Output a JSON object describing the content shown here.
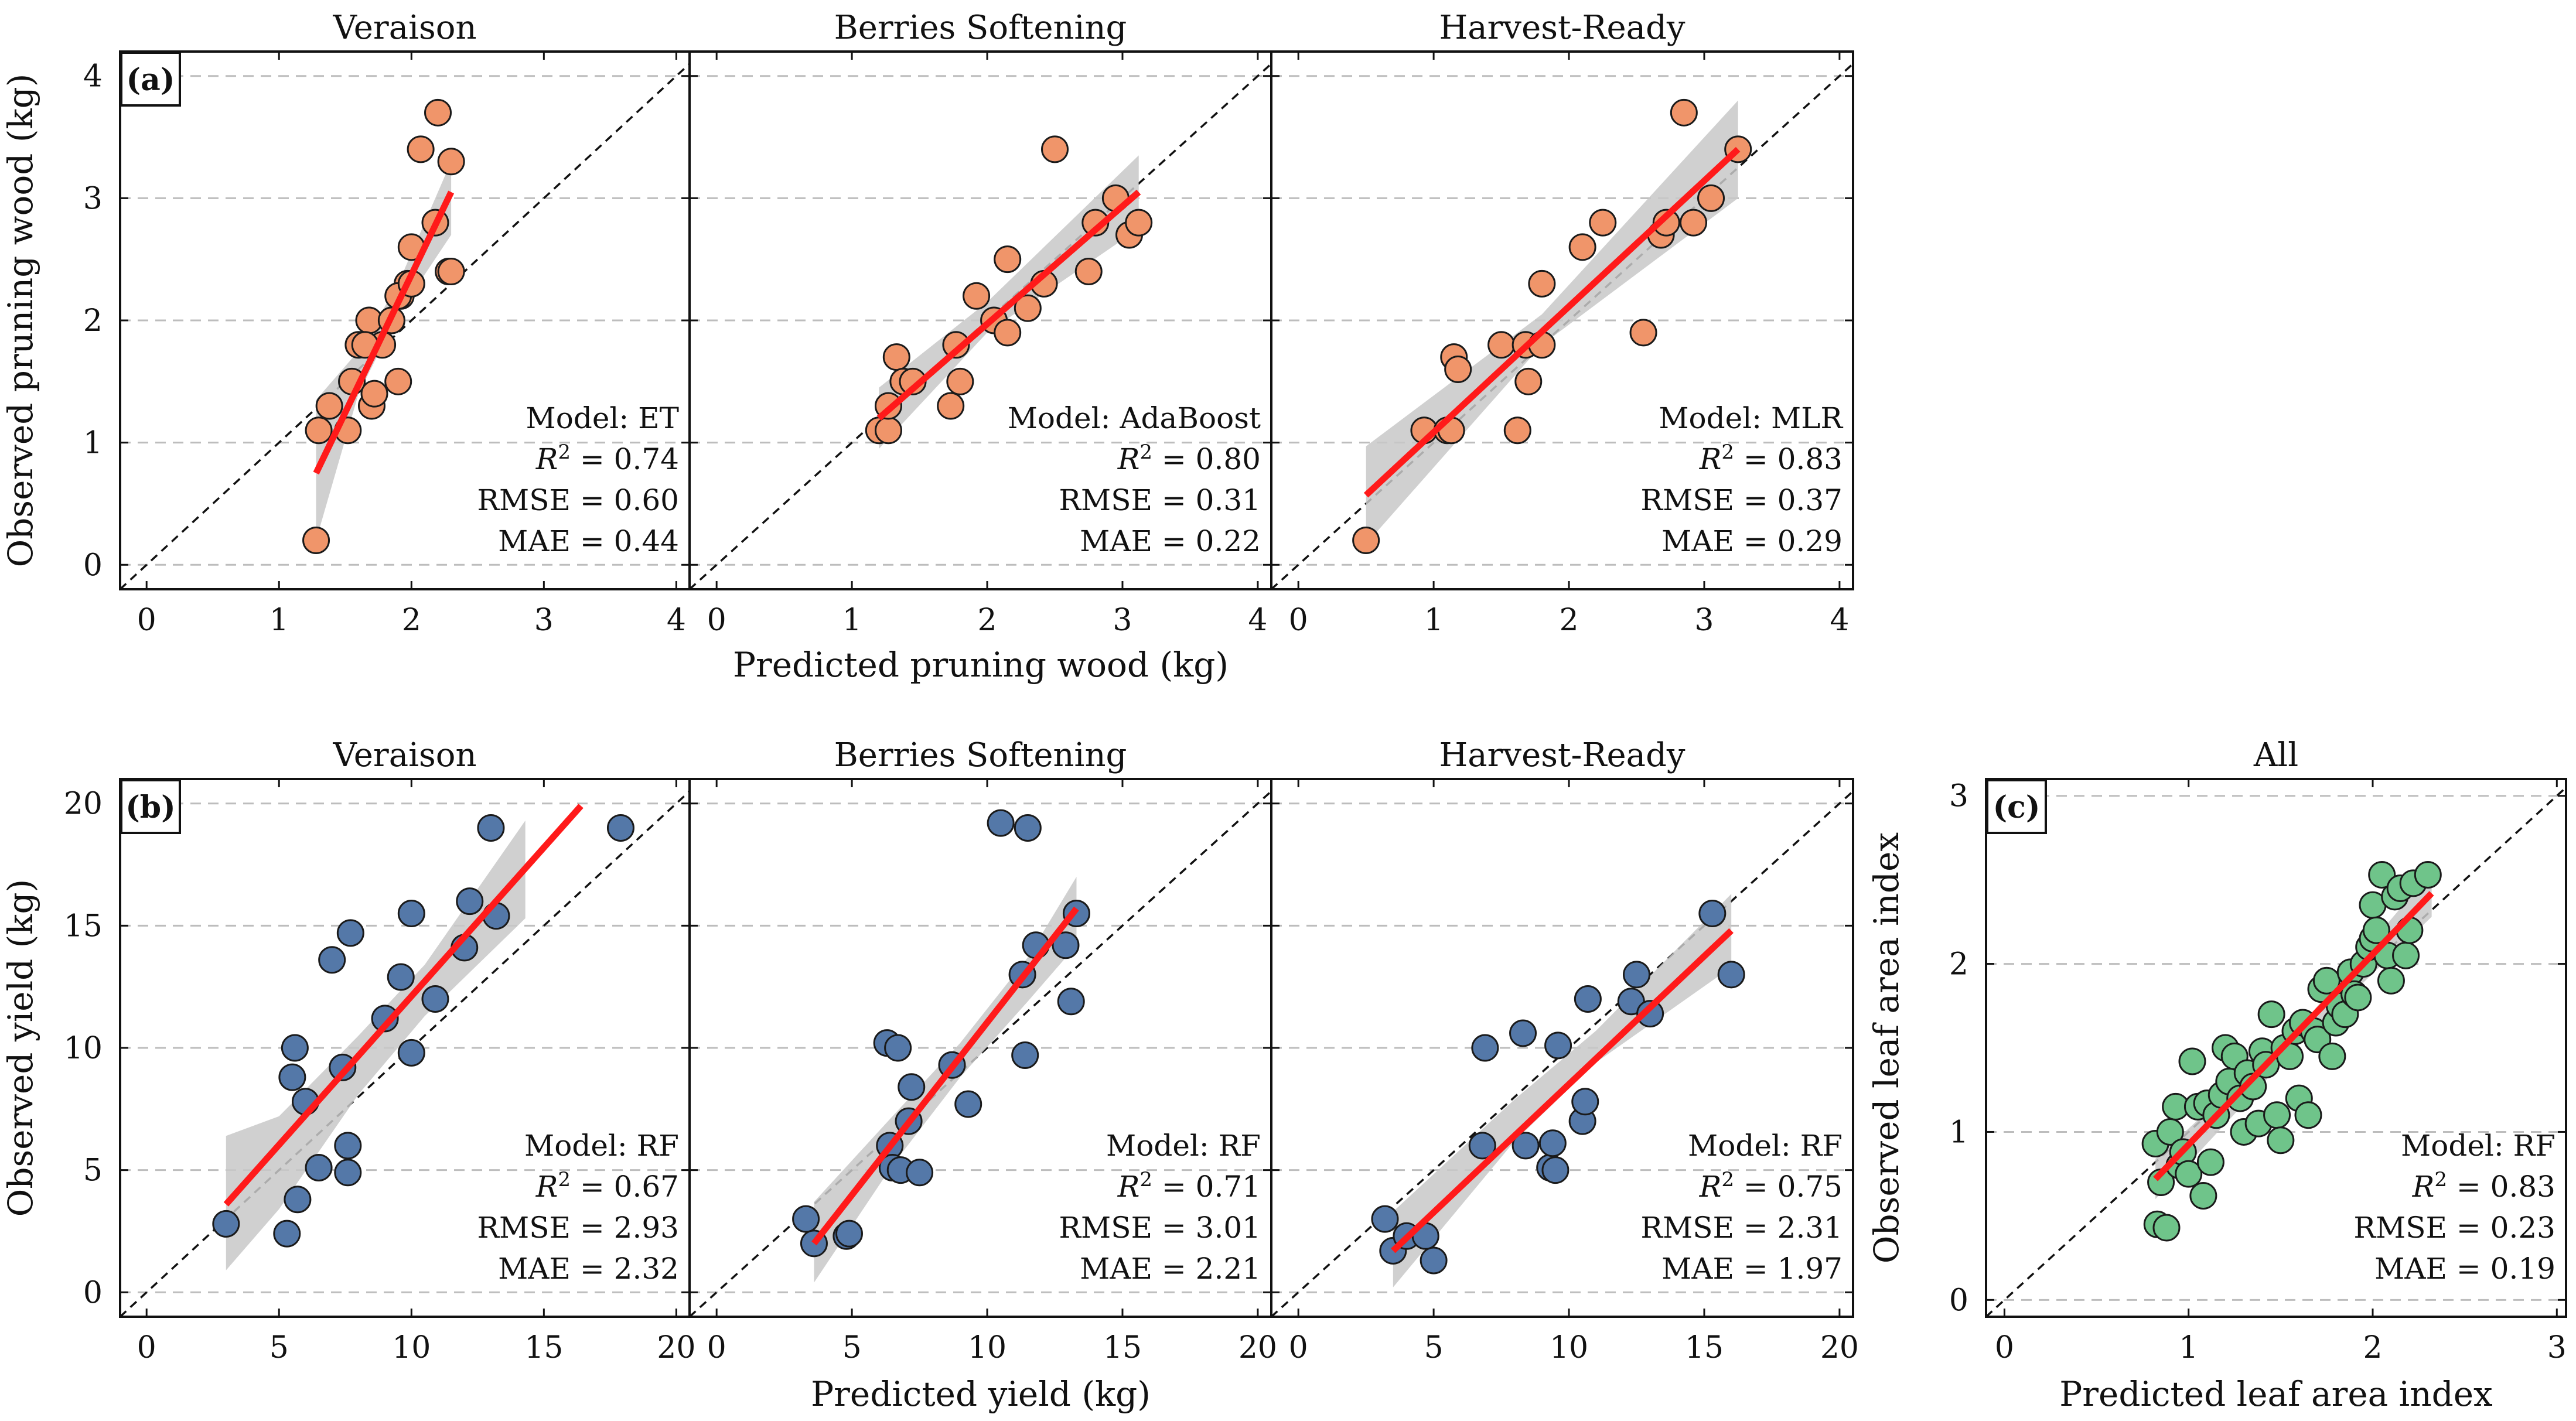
{
  "chart_data": [
    {
      "id": "pw-veraison",
      "type": "scatter",
      "panel_label": "(a)",
      "title": "Veraison",
      "ylabel": "Observed pruning wood (kg)",
      "xlim": [
        -0.2,
        4.1
      ],
      "ylim": [
        -0.2,
        4.2
      ],
      "xticks": [
        "0",
        "1",
        "2",
        "3",
        "4"
      ],
      "yticks": [
        "0",
        "1",
        "2",
        "3",
        "4"
      ],
      "tickvals": [
        0,
        1,
        2,
        3,
        4
      ],
      "point_color": "#f0956a",
      "points": [
        [
          1.28,
          0.2
        ],
        [
          1.3,
          1.1
        ],
        [
          1.38,
          1.3
        ],
        [
          1.52,
          1.1
        ],
        [
          1.55,
          1.5
        ],
        [
          1.6,
          1.8
        ],
        [
          1.68,
          2.0
        ],
        [
          1.7,
          1.3
        ],
        [
          1.72,
          1.4
        ],
        [
          1.78,
          1.8
        ],
        [
          1.85,
          2.0
        ],
        [
          1.9,
          1.5
        ],
        [
          1.92,
          2.2
        ],
        [
          1.97,
          2.3
        ],
        [
          2.0,
          2.6
        ],
        [
          2.07,
          3.4
        ],
        [
          2.18,
          2.8
        ],
        [
          2.2,
          3.7
        ],
        [
          2.28,
          2.4
        ],
        [
          2.3,
          3.3
        ],
        [
          2.3,
          2.4
        ],
        [
          1.65,
          1.8
        ],
        [
          1.9,
          2.2
        ],
        [
          2.0,
          2.3
        ]
      ],
      "fit": {
        "x": [
          1.28,
          2.3
        ],
        "y": [
          0.75,
          3.05
        ]
      },
      "band": {
        "upper": [
          [
            1.28,
            1.35
          ],
          [
            1.6,
            1.75
          ],
          [
            1.9,
            2.3
          ],
          [
            2.3,
            3.3
          ]
        ],
        "lower": [
          [
            1.28,
            0.2
          ],
          [
            1.6,
            1.4
          ],
          [
            1.9,
            2.05
          ],
          [
            2.3,
            2.7
          ]
        ]
      },
      "stats": {
        "model": "Model:  ET",
        "r2": "= 0.74",
        "rmse": "RMSE = 0.60",
        "mae": "MAE = 0.44"
      }
    },
    {
      "id": "pw-softening",
      "type": "scatter",
      "title": "Berries Softening",
      "xlim": [
        -0.2,
        4.1
      ],
      "ylim": [
        -0.2,
        4.2
      ],
      "xticks": [
        "0",
        "1",
        "2",
        "3",
        "4"
      ],
      "tickvals": [
        0,
        1,
        2,
        3,
        4
      ],
      "point_color": "#f0956a",
      "points": [
        [
          1.2,
          1.1
        ],
        [
          1.27,
          1.1
        ],
        [
          1.27,
          1.3
        ],
        [
          1.33,
          1.7
        ],
        [
          1.38,
          1.5
        ],
        [
          1.45,
          1.5
        ],
        [
          1.73,
          1.3
        ],
        [
          1.77,
          1.8
        ],
        [
          1.8,
          1.5
        ],
        [
          1.92,
          2.2
        ],
        [
          2.05,
          2.0
        ],
        [
          2.15,
          2.5
        ],
        [
          2.15,
          1.9
        ],
        [
          2.3,
          2.1
        ],
        [
          2.42,
          2.3
        ],
        [
          2.5,
          3.4
        ],
        [
          2.75,
          2.4
        ],
        [
          2.8,
          2.8
        ],
        [
          2.95,
          3.0
        ],
        [
          3.05,
          2.7
        ],
        [
          3.12,
          2.8
        ]
      ],
      "fit": {
        "x": [
          1.2,
          3.12
        ],
        "y": [
          1.2,
          3.05
        ]
      },
      "band": {
        "upper": [
          [
            1.2,
            1.45
          ],
          [
            2.0,
            2.15
          ],
          [
            3.12,
            3.35
          ]
        ],
        "lower": [
          [
            1.2,
            0.95
          ],
          [
            2.0,
            1.9
          ],
          [
            3.12,
            2.75
          ]
        ]
      },
      "stats": {
        "model": "Model:  AdaBoost",
        "r2": "= 0.80",
        "rmse": "RMSE = 0.31",
        "mae": "MAE = 0.22"
      }
    },
    {
      "id": "pw-harvest",
      "type": "scatter",
      "title": "Harvest-Ready",
      "xlim": [
        -0.2,
        4.1
      ],
      "ylim": [
        -0.2,
        4.2
      ],
      "xticks": [
        "0",
        "1",
        "2",
        "3",
        "4"
      ],
      "tickvals": [
        0,
        1,
        2,
        3,
        4
      ],
      "point_color": "#f0956a",
      "points": [
        [
          0.5,
          0.2
        ],
        [
          0.93,
          1.1
        ],
        [
          1.1,
          1.1
        ],
        [
          1.13,
          1.1
        ],
        [
          1.15,
          1.7
        ],
        [
          1.18,
          1.6
        ],
        [
          1.5,
          1.8
        ],
        [
          1.62,
          1.1
        ],
        [
          1.68,
          1.8
        ],
        [
          1.7,
          1.5
        ],
        [
          1.8,
          1.8
        ],
        [
          1.8,
          2.3
        ],
        [
          2.1,
          2.6
        ],
        [
          2.25,
          2.8
        ],
        [
          2.55,
          1.9
        ],
        [
          2.68,
          2.7
        ],
        [
          2.72,
          2.8
        ],
        [
          2.85,
          3.7
        ],
        [
          2.92,
          2.8
        ],
        [
          3.05,
          3.0
        ],
        [
          3.25,
          3.4
        ]
      ],
      "fit": {
        "x": [
          0.5,
          3.25
        ],
        "y": [
          0.57,
          3.4
        ]
      },
      "band": {
        "upper": [
          [
            0.5,
            0.97
          ],
          [
            1.8,
            2.05
          ],
          [
            3.25,
            3.8
          ]
        ],
        "lower": [
          [
            0.5,
            0.17
          ],
          [
            1.8,
            1.8
          ],
          [
            3.25,
            3.0
          ]
        ]
      },
      "stats": {
        "model": "Model:  MLR",
        "r2": "= 0.83",
        "rmse": "RMSE = 0.37",
        "mae": "MAE = 0.29"
      }
    },
    {
      "id": "yield-veraison",
      "type": "scatter",
      "panel_label": "(b)",
      "title": "Veraison",
      "ylabel": "Observed yield (kg)",
      "xlim": [
        -1,
        20.5
      ],
      "ylim": [
        -1,
        21
      ],
      "xticks": [
        "0",
        "5",
        "10",
        "15",
        "20"
      ],
      "yticks": [
        "0",
        "5",
        "10",
        "15",
        "20"
      ],
      "tickvals": [
        0,
        5,
        10,
        15,
        20
      ],
      "point_color": "#5478a8",
      "points": [
        [
          3,
          2.8
        ],
        [
          5.3,
          2.4
        ],
        [
          5.5,
          8.8
        ],
        [
          5.6,
          10
        ],
        [
          5.7,
          3.8
        ],
        [
          6,
          7.8
        ],
        [
          6.5,
          5.1
        ],
        [
          7,
          13.6
        ],
        [
          7.4,
          9.2
        ],
        [
          7.6,
          6
        ],
        [
          7.6,
          4.9
        ],
        [
          7.7,
          14.7
        ],
        [
          9,
          11.2
        ],
        [
          9.6,
          12.9
        ],
        [
          10,
          9.8
        ],
        [
          10,
          15.5
        ],
        [
          10.9,
          12
        ],
        [
          12,
          14.1
        ],
        [
          12.2,
          16
        ],
        [
          13,
          19
        ],
        [
          13.2,
          15.4
        ],
        [
          17.9,
          19
        ]
      ],
      "fit": {
        "x": [
          3,
          16.4
        ],
        "y": [
          3.6,
          19.9
        ]
      },
      "band": {
        "upper": [
          [
            3,
            6.4
          ],
          [
            5,
            7.2
          ],
          [
            8,
            10.5
          ],
          [
            10.5,
            13.4
          ],
          [
            14.3,
            19.3
          ]
        ],
        "lower": [
          [
            3,
            0.9
          ],
          [
            5,
            3.4
          ],
          [
            8,
            8.1
          ],
          [
            10.5,
            11.3
          ],
          [
            14.3,
            15.3
          ]
        ]
      },
      "stats": {
        "model": "Model:  RF",
        "r2": "= 0.67",
        "rmse": "RMSE = 2.93",
        "mae": "MAE = 2.32"
      }
    },
    {
      "id": "yield-softening",
      "type": "scatter",
      "title": "Berries Softening",
      "xlim": [
        -1,
        20.5
      ],
      "ylim": [
        -1,
        21
      ],
      "xticks": [
        "0",
        "5",
        "10",
        "15",
        "20"
      ],
      "tickvals": [
        0,
        5,
        10,
        15,
        20
      ],
      "point_color": "#5478a8",
      "points": [
        [
          3.3,
          3
        ],
        [
          3.6,
          2
        ],
        [
          4.8,
          2.3
        ],
        [
          4.9,
          2.4
        ],
        [
          6.3,
          10.2
        ],
        [
          6.4,
          6
        ],
        [
          6.5,
          5.1
        ],
        [
          6.7,
          10
        ],
        [
          6.8,
          5
        ],
        [
          7.1,
          7
        ],
        [
          7.2,
          8.4
        ],
        [
          7.5,
          4.9
        ],
        [
          8.7,
          9.3
        ],
        [
          9.3,
          7.7
        ],
        [
          10.5,
          19.2
        ],
        [
          11.3,
          13
        ],
        [
          11.4,
          9.7
        ],
        [
          11.5,
          19
        ],
        [
          11.8,
          14.2
        ],
        [
          12.9,
          14.2
        ],
        [
          13.1,
          11.9
        ],
        [
          13.3,
          15.5
        ]
      ],
      "fit": {
        "x": [
          3.6,
          13.3
        ],
        "y": [
          2.0,
          15.7
        ]
      },
      "band": {
        "upper": [
          [
            3.6,
            3.7
          ],
          [
            6.5,
            7.2
          ],
          [
            9,
            10.2
          ],
          [
            11.5,
            13.7
          ],
          [
            13.3,
            17
          ]
        ],
        "lower": [
          [
            3.6,
            0.4
          ],
          [
            6.5,
            5.2
          ],
          [
            9,
            8.8
          ],
          [
            11.5,
            11.9
          ],
          [
            13.3,
            14.2
          ]
        ]
      },
      "stats": {
        "model": "Model:  RF",
        "r2": "= 0.71",
        "rmse": "RMSE = 3.01",
        "mae": "MAE = 2.21"
      }
    },
    {
      "id": "yield-harvest",
      "type": "scatter",
      "title": "Harvest-Ready",
      "xlim": [
        -1,
        20.5
      ],
      "ylim": [
        -1,
        21
      ],
      "xticks": [
        "0",
        "5",
        "10",
        "15",
        "20"
      ],
      "tickvals": [
        0,
        5,
        10,
        15,
        20
      ],
      "point_color": "#5478a8",
      "points": [
        [
          3.2,
          3
        ],
        [
          3.5,
          1.7
        ],
        [
          4,
          2.3
        ],
        [
          4.7,
          2.3
        ],
        [
          5,
          1.3
        ],
        [
          6.8,
          6
        ],
        [
          6.9,
          10
        ],
        [
          8.3,
          10.6
        ],
        [
          8.4,
          6
        ],
        [
          9.3,
          5.1
        ],
        [
          9.4,
          6.1
        ],
        [
          9.5,
          5
        ],
        [
          9.6,
          10.1
        ],
        [
          10.5,
          7
        ],
        [
          10.6,
          7.8
        ],
        [
          10.7,
          12
        ],
        [
          12.3,
          11.9
        ],
        [
          12.5,
          13
        ],
        [
          13,
          11.4
        ],
        [
          15.3,
          15.5
        ],
        [
          16,
          13
        ]
      ],
      "fit": {
        "x": [
          3.5,
          16
        ],
        "y": [
          1.7,
          14.8
        ]
      },
      "band": {
        "upper": [
          [
            3.5,
            3.3
          ],
          [
            8,
            7.9
          ],
          [
            11,
            10.7
          ],
          [
            16,
            16.3
          ]
        ],
        "lower": [
          [
            3.5,
            0.2
          ],
          [
            8,
            6.2
          ],
          [
            11,
            9.4
          ],
          [
            16,
            13.3
          ]
        ]
      },
      "stats": {
        "model": "Model:  RF",
        "r2": "= 0.75",
        "rmse": "RMSE = 2.31",
        "mae": "MAE = 1.97"
      }
    },
    {
      "id": "lai-all",
      "type": "scatter",
      "panel_label": "(c)",
      "title": "All",
      "ylabel": "Observed leaf area index",
      "xlabel": "Predicted leaf area index",
      "xlim": [
        -0.1,
        3.05
      ],
      "ylim": [
        -0.1,
        3.1
      ],
      "xticks": [
        "0",
        "1",
        "2",
        "3"
      ],
      "yticks": [
        "0",
        "1",
        "2",
        "3"
      ],
      "tickvals": [
        0,
        1,
        2,
        3
      ],
      "point_color": "#6fc48a",
      "points": [
        [
          0.82,
          0.93
        ],
        [
          0.83,
          0.45
        ],
        [
          0.85,
          0.7
        ],
        [
          0.88,
          0.43
        ],
        [
          0.9,
          1.0
        ],
        [
          0.93,
          1.15
        ],
        [
          0.95,
          0.8
        ],
        [
          0.97,
          0.88
        ],
        [
          1.0,
          0.75
        ],
        [
          1.02,
          1.42
        ],
        [
          1.05,
          1.15
        ],
        [
          1.08,
          0.62
        ],
        [
          1.1,
          1.17
        ],
        [
          1.12,
          0.82
        ],
        [
          1.15,
          1.1
        ],
        [
          1.18,
          1.22
        ],
        [
          1.2,
          1.5
        ],
        [
          1.22,
          1.3
        ],
        [
          1.25,
          1.45
        ],
        [
          1.28,
          1.2
        ],
        [
          1.3,
          1.0
        ],
        [
          1.32,
          1.35
        ],
        [
          1.35,
          1.27
        ],
        [
          1.38,
          1.05
        ],
        [
          1.4,
          1.48
        ],
        [
          1.42,
          1.4
        ],
        [
          1.45,
          1.7
        ],
        [
          1.48,
          1.1
        ],
        [
          1.5,
          0.95
        ],
        [
          1.52,
          1.5
        ],
        [
          1.55,
          1.45
        ],
        [
          1.58,
          1.6
        ],
        [
          1.6,
          1.2
        ],
        [
          1.62,
          1.65
        ],
        [
          1.65,
          1.1
        ],
        [
          1.68,
          1.6
        ],
        [
          1.7,
          1.55
        ],
        [
          1.72,
          1.85
        ],
        [
          1.75,
          1.9
        ],
        [
          1.78,
          1.45
        ],
        [
          1.8,
          1.65
        ],
        [
          1.82,
          1.75
        ],
        [
          1.85,
          1.7
        ],
        [
          1.88,
          1.95
        ],
        [
          1.9,
          1.82
        ],
        [
          1.92,
          1.8
        ],
        [
          1.95,
          2.0
        ],
        [
          1.98,
          2.1
        ],
        [
          2.0,
          2.15
        ],
        [
          2.0,
          2.35
        ],
        [
          2.02,
          2.2
        ],
        [
          2.05,
          2.53
        ],
        [
          2.08,
          2.05
        ],
        [
          2.1,
          1.9
        ],
        [
          2.12,
          2.4
        ],
        [
          2.15,
          2.45
        ],
        [
          2.18,
          2.05
        ],
        [
          2.2,
          2.2
        ],
        [
          2.22,
          2.48
        ],
        [
          2.3,
          2.53
        ]
      ],
      "fit": {
        "x": [
          0.82,
          2.32
        ],
        "y": [
          0.72,
          2.42
        ]
      },
      "band": {
        "upper": [
          [
            0.82,
            0.84
          ],
          [
            1.6,
            1.62
          ],
          [
            2.32,
            2.55
          ]
        ],
        "lower": [
          [
            0.82,
            0.6
          ],
          [
            1.6,
            1.52
          ],
          [
            2.32,
            2.28
          ]
        ]
      },
      "stats": {
        "model": "Model:  RF",
        "r2": "= 0.83",
        "rmse": "RMSE = 0.23",
        "mae": "MAE = 0.19"
      }
    }
  ],
  "shared_labels": {
    "top_xlabel": "Predicted pruning wood (kg)",
    "bottom_xlabel": "Predicted yield (kg)",
    "r2_symbol": "R",
    "r2_sup": "2"
  }
}
